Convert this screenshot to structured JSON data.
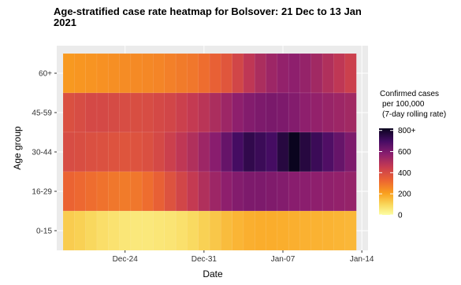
{
  "chart_data": {
    "type": "heatmap",
    "title_lines": [
      "Age-stratified case rate heatmap for Bolsover: 21 Dec to 13 Jan",
      "2021"
    ],
    "xlabel": "Date",
    "ylabel": "Age group",
    "x_start_date": "2020-12-19",
    "x_tick_labels": [
      "Dec-24",
      "Dec-31",
      "Jan-07",
      "Jan-14"
    ],
    "x_tick_dates": [
      "2020-12-24",
      "2020-12-31",
      "2021-01-07",
      "2021-01-14"
    ],
    "age_groups": [
      "60+",
      "45-59",
      "30-44",
      "16-29",
      "0-15"
    ],
    "values": {
      "60+": [
        220,
        225,
        230,
        235,
        240,
        245,
        250,
        255,
        260,
        270,
        280,
        290,
        310,
        340,
        370,
        420,
        470,
        510,
        540,
        560,
        570,
        555,
        530,
        500,
        470,
        440
      ],
      "45-59": [
        390,
        400,
        410,
        410,
        405,
        400,
        395,
        400,
        410,
        420,
        440,
        460,
        480,
        510,
        540,
        570,
        590,
        600,
        605,
        600,
        590,
        570,
        560,
        550,
        540,
        530
      ],
      "30-44": [
        400,
        395,
        390,
        385,
        380,
        375,
        380,
        390,
        410,
        440,
        470,
        500,
        540,
        580,
        640,
        700,
        740,
        720,
        700,
        760,
        820,
        760,
        720,
        680,
        640,
        600
      ],
      "16-29": [
        330,
        320,
        310,
        300,
        290,
        280,
        290,
        310,
        340,
        380,
        420,
        460,
        500,
        540,
        570,
        590,
        600,
        600,
        595,
        590,
        580,
        575,
        570,
        565,
        560,
        555
      ],
      "0-15": [
        120,
        110,
        95,
        80,
        70,
        60,
        55,
        55,
        60,
        65,
        75,
        90,
        110,
        130,
        150,
        165,
        175,
        180,
        180,
        178,
        175,
        172,
        170,
        168,
        165,
        160
      ]
    },
    "legend": {
      "title_lines": [
        "Confirmed cases",
        "per 100,000",
        "(7-day rolling rate)"
      ],
      "ticks": [
        0,
        200,
        400,
        600
      ],
      "tick_labels": [
        "0",
        "200",
        "400",
        "600",
        "800+"
      ],
      "top_tick_value": 800,
      "min": 0,
      "max": 820
    },
    "grid": true,
    "colors": {
      "panel_background": "#ebebeb",
      "grid": "#ffffff",
      "colormap": "inferno"
    }
  }
}
